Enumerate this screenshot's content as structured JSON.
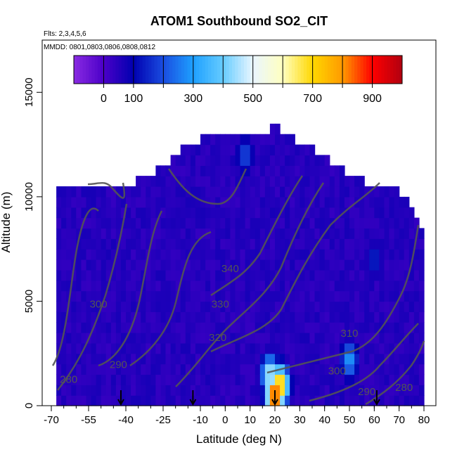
{
  "chart_data": {
    "type": "heatmap",
    "title": "ATOM1 Southbound SO2_CIT",
    "annotations": [
      "Flts: 2,3,4,5,6",
      "MMDD: 0801,0803,0806,0808,0812"
    ],
    "xlabel": "Latitude (deg N)",
    "ylabel": "Altitude (m)",
    "xlim": [
      -70,
      80
    ],
    "ylim": [
      0,
      17500
    ],
    "x_ticks": [
      -70,
      -55,
      -40,
      -25,
      -10,
      0,
      10,
      20,
      30,
      40,
      50,
      60,
      70,
      80
    ],
    "y_ticks": [
      0,
      5000,
      10000,
      15000
    ],
    "colorbar": {
      "range": [
        -100,
        1000
      ],
      "ticks": [
        0,
        100,
        300,
        500,
        700,
        900
      ],
      "placement": "top"
    },
    "colors": {
      "background_field": "#1a1acc",
      "contour": "#555555",
      "colorbar_stops": [
        "#8a2be2",
        "#4b00c8",
        "#0000b0",
        "#1a4de0",
        "#1ea0ff",
        "#66ccff",
        "#eaf6ff",
        "#ffffc0",
        "#ffd700",
        "#ff9a00",
        "#ff0000",
        "#b00010"
      ]
    },
    "profile": {
      "latitudes": [
        -68,
        -60,
        -50,
        -40,
        -30,
        -20,
        -15,
        -10,
        -5,
        0,
        5,
        10,
        15,
        20,
        25,
        30,
        40,
        50,
        60,
        65,
        70,
        75,
        80
      ],
      "top_altitude": [
        10500,
        10500,
        10500,
        10500,
        11000,
        12000,
        12500,
        12800,
        12800,
        12800,
        13000,
        13000,
        13000,
        13500,
        13000,
        12500,
        12000,
        11000,
        10500,
        10500,
        10200,
        9500,
        8000
      ]
    },
    "features": [
      {
        "latitude": 20,
        "altitude": 500,
        "value": 950
      },
      {
        "latitude": 22,
        "altitude": 1000,
        "value": 800
      },
      {
        "latitude": 18,
        "altitude": 1500,
        "value": 500
      },
      {
        "latitude": 50,
        "altitude": 2200,
        "value": 300
      },
      {
        "latitude": 8,
        "altitude": 12000,
        "value": 200
      },
      {
        "latitude": 60,
        "altitude": 7000,
        "value": 150
      }
    ],
    "contour_labels": [
      {
        "text": "340",
        "lat": 2,
        "alt": 6400
      },
      {
        "text": "330",
        "lat": -2,
        "alt": 4700
      },
      {
        "text": "320",
        "lat": -3,
        "alt": 3100
      },
      {
        "text": "310",
        "lat": 50,
        "alt": 3300
      },
      {
        "text": "300",
        "lat": -51,
        "alt": 4700
      },
      {
        "text": "300",
        "lat": 45,
        "alt": 1500
      },
      {
        "text": "290",
        "lat": -43,
        "alt": 1800
      },
      {
        "text": "290",
        "lat": 57,
        "alt": 500
      },
      {
        "text": "280",
        "lat": -63,
        "alt": 1100
      },
      {
        "text": "280",
        "lat": 72,
        "alt": 700
      }
    ],
    "flight_markers_lat": [
      -42,
      -13,
      20,
      61
    ]
  }
}
